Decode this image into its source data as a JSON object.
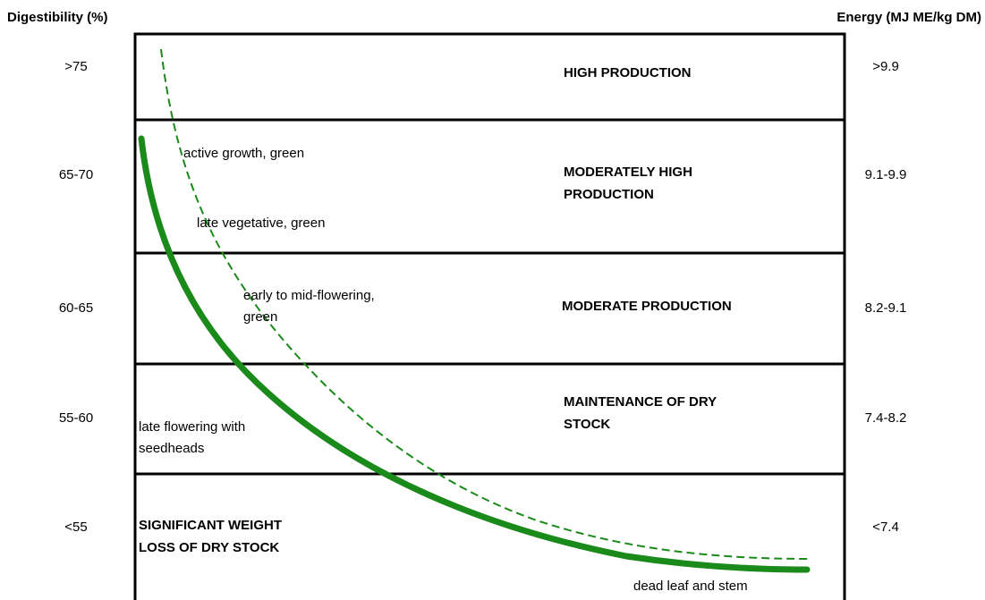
{
  "left_axis_title": "Digestibility (%)",
  "right_axis_title": "Energy (MJ ME/kg DM)",
  "bands": [
    {
      "digestibility": ">75",
      "energy": ">9.9",
      "label": [
        "HIGH PRODUCTION"
      ]
    },
    {
      "digestibility": "65-70",
      "energy": "9.1-9.9",
      "label": [
        "MODERATELY HIGH",
        "PRODUCTION"
      ]
    },
    {
      "digestibility": "60-65",
      "energy": "8.2-9.1",
      "label": [
        "MODERATE PRODUCTION"
      ]
    },
    {
      "digestibility": "55-60",
      "energy": "7.4-8.2",
      "label": [
        "MAINTENANCE OF DRY",
        "STOCK"
      ]
    },
    {
      "digestibility": "<55",
      "energy": "<7.4",
      "label": [
        "SIGNIFICANT WEIGHT",
        "LOSS OF DRY STOCK"
      ]
    }
  ],
  "stages": [
    [
      "active growth, green"
    ],
    [
      "late vegetative, green"
    ],
    [
      "early to mid-flowering,",
      "green"
    ],
    [
      "late flowering with",
      "seedheads"
    ],
    [
      "dead leaf and stem"
    ]
  ]
}
